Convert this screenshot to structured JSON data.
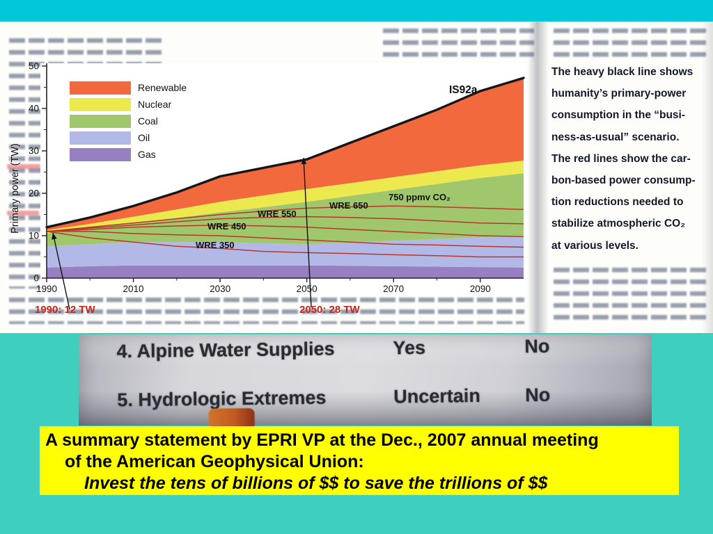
{
  "slide": {
    "background": "#3fcfbf",
    "top_bar_color": "#00c8d8"
  },
  "scan": {
    "caption": "The heavy black line shows\nhumanity’s primary-power\nconsumption in the “busi-\nness-as-usual” scenario.\nThe red lines show the car-\nbon-based power consump-\ntion reductions needed to\nstabilize atmospheric CO₂\nat various levels."
  },
  "chart_data": {
    "type": "area",
    "stacked": true,
    "title": "",
    "xlabel": "",
    "ylabel": "Primary power (TW)",
    "xlim": [
      1990,
      2100
    ],
    "ylim": [
      0,
      50
    ],
    "x_ticks": [
      1990,
      2010,
      2030,
      2050,
      2070,
      2090
    ],
    "y_ticks": [
      0,
      10,
      20,
      30,
      40,
      50
    ],
    "grid": false,
    "legend_position": "upper-left",
    "years": [
      1990,
      2000,
      2010,
      2020,
      2030,
      2040,
      2050,
      2060,
      2070,
      2080,
      2090,
      2100
    ],
    "stack_series": [
      {
        "name": "Gas",
        "color": "#9680c2",
        "values": [
          2.5,
          2.8,
          3.0,
          3.0,
          3.0,
          3.0,
          3.0,
          2.9,
          2.8,
          2.7,
          2.6,
          2.5
        ]
      },
      {
        "name": "Oil",
        "color": "#b2b9e6",
        "values": [
          5.0,
          5.2,
          5.5,
          5.5,
          5.5,
          5.2,
          5.0,
          5.5,
          6.0,
          6.5,
          7.0,
          7.5
        ]
      },
      {
        "name": "Coal",
        "color": "#a0c76b",
        "values": [
          3.0,
          3.7,
          4.5,
          5.7,
          7.0,
          8.5,
          10.0,
          11.0,
          12.0,
          13.0,
          14.0,
          14.7
        ]
      },
      {
        "name": "Nuclear",
        "color": "#ece94f",
        "values": [
          0.8,
          1.1,
          1.5,
          2.0,
          2.5,
          2.8,
          3.0,
          3.0,
          3.0,
          3.0,
          3.0,
          3.0
        ]
      },
      {
        "name": "Renewable",
        "color": "#f2693e",
        "values": [
          0.7,
          1.5,
          2.5,
          4.0,
          6.0,
          6.5,
          7.0,
          9.5,
          12.0,
          14.5,
          17.5,
          19.5
        ]
      }
    ],
    "total_line": {
      "name": "IS92a",
      "color": "#15151a"
    },
    "red_line_color": "#b5382b",
    "red_lines": [
      {
        "name": "750 ppmv CO₂",
        "values": [
          11.0,
          12.0,
          13.0,
          14.0,
          15.0,
          15.8,
          16.5,
          16.8,
          17.0,
          16.8,
          16.5,
          16.2
        ]
      },
      {
        "name": "WRE 650",
        "values": [
          11.0,
          11.8,
          12.5,
          13.3,
          14.0,
          14.3,
          14.5,
          14.3,
          14.0,
          13.5,
          13.0,
          12.8
        ]
      },
      {
        "name": "WRE 550",
        "values": [
          11.0,
          11.5,
          12.0,
          12.3,
          12.5,
          12.3,
          12.0,
          11.5,
          11.0,
          10.5,
          10.0,
          9.8
        ]
      },
      {
        "name": "WRE 450",
        "values": [
          11.0,
          11.0,
          10.5,
          10.2,
          10.0,
          9.5,
          9.0,
          8.5,
          8.0,
          7.8,
          7.5,
          7.3
        ]
      },
      {
        "name": "WRE 350",
        "values": [
          11.0,
          9.5,
          8.5,
          7.5,
          7.0,
          6.3,
          6.0,
          5.8,
          5.5,
          5.3,
          5.0,
          5.0
        ]
      }
    ],
    "legend": [
      "Renewable",
      "Nuclear",
      "Coal",
      "Oil",
      "Gas"
    ],
    "annotations": {
      "label_1990": "1990: 12 TW",
      "label_2050": "2050: 28 TW"
    }
  },
  "photo": {
    "rows": [
      {
        "item": "4. Alpine Water Supplies",
        "a1": "Yes",
        "a2": "No"
      },
      {
        "item": "5. Hydrologic Extremes",
        "a1": "Uncertain",
        "a2": "No"
      }
    ]
  },
  "summary_box": {
    "bg": "#ffff00",
    "line1": "A summary statement by EPRI VP at the Dec., 2007 annual meeting",
    "line2": "of the American Geophysical Union:",
    "line3": "Invest the tens of billions of $$ to save the trillions of $$"
  }
}
